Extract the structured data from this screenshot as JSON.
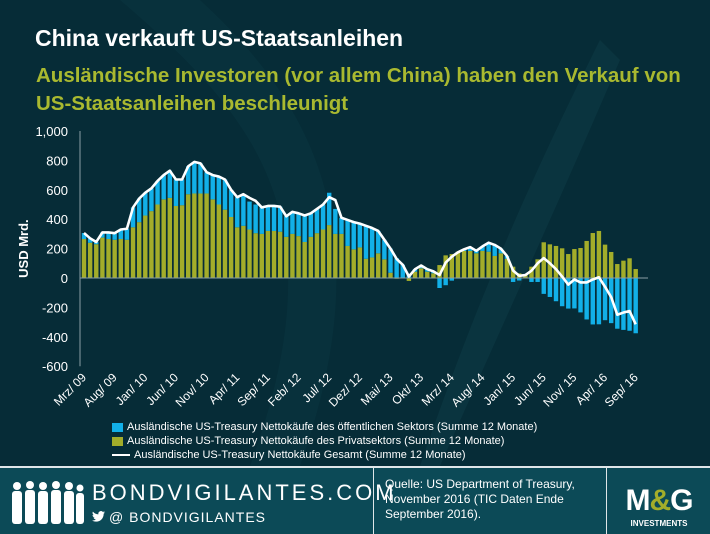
{
  "header": {
    "title": "China verkauft US-Staatsanleihen",
    "subtitle": "Ausländische Investoren (vor allem China) haben den Verkauf von US-Staatsanleihen beschleunigt"
  },
  "chart_data": {
    "type": "bar",
    "stacked": true,
    "ylabel": "USD Mrd.",
    "ylim": [
      -600,
      1000
    ],
    "yticks": [
      1000,
      800,
      600,
      400,
      200,
      0,
      -200,
      -400,
      -600
    ],
    "ytick_labels": [
      "1,000",
      "800",
      "600",
      "400",
      "200",
      "0",
      "-200",
      "-400",
      "-600"
    ],
    "x_start": "Mrz/ 09",
    "x_end": "Sep/ 16",
    "frequency": "monthly",
    "tick_labels": [
      "Mrz/ 09",
      "Aug/ 09",
      "Jan/ 10",
      "Jun/ 10",
      "Nov/ 10",
      "Apr/ 11",
      "Sep/ 11",
      "Feb/ 12",
      "Jul/ 12",
      "Dez/ 12",
      "Mai/ 13",
      "Okt/ 13",
      "Mrz/ 14",
      "Aug/ 14",
      "Jan/ 15",
      "Jun/ 15",
      "Nov/ 15",
      "Apr/ 16",
      "Sep/ 16"
    ],
    "grid": false,
    "legend_placement": "bottom",
    "series": [
      {
        "name": "Ausländische US-Treasury Nettokäufe des öffentlichen Sektors (Summe 12 Monate)",
        "type": "bar",
        "color": "#12b0e8",
        "values": [
          41,
          30,
          15,
          35,
          45,
          45,
          65,
          75,
          135,
          160,
          155,
          155,
          160,
          165,
          185,
          180,
          175,
          190,
          215,
          205,
          145,
          165,
          190,
          205,
          185,
          205,
          215,
          190,
          195,
          180,
          170,
          170,
          170,
          140,
          150,
          155,
          180,
          160,
          165,
          170,
          220,
          170,
          110,
          177,
          185,
          162,
          220,
          200,
          152,
          133,
          164,
          135,
          90,
          30,
          17,
          19,
          17,
          13,
          -68,
          -49,
          -18,
          -4,
          11,
          26,
          17,
          31,
          61,
          75,
          32,
          19,
          -27,
          -17,
          0,
          -27,
          -27,
          -108,
          -129,
          -158,
          -192,
          -208,
          -207,
          -234,
          -282,
          -316,
          -315,
          -287,
          -307,
          -345,
          -353,
          -359,
          -376
        ]
      },
      {
        "name": "Ausländische US-Treasury Nettokäufe des Privatsektors (Summe 12 Monate)",
        "type": "bar",
        "color": "#a3ad2a",
        "values": [
          265,
          240,
          230,
          275,
          265,
          260,
          265,
          260,
          345,
          380,
          425,
          455,
          500,
          535,
          545,
          490,
          495,
          570,
          575,
          575,
          575,
          535,
          500,
          465,
          415,
          345,
          355,
          330,
          305,
          300,
          320,
          320,
          315,
          280,
          300,
          285,
          245,
          280,
          305,
          330,
          360,
          300,
          300,
          218,
          195,
          208,
          131,
          140,
          168,
          127,
          36,
          -5,
          0,
          -20,
          43,
          66,
          43,
          32,
          88,
          154,
          163,
          179,
          184,
          184,
          168,
          184,
          179,
          150,
          168,
          131,
          77,
          32,
          20,
          77,
          127,
          243,
          229,
          218,
          202,
          163,
          197,
          204,
          252,
          306,
          320,
          227,
          177,
          95,
          118,
          134,
          61
        ]
      },
      {
        "name": "Ausländische US-Treasury Nettokäufe Gesamt (Summe 12 Monate)",
        "type": "line",
        "color": "#ffffff",
        "values": [
          306,
          270,
          245,
          310,
          310,
          305,
          330,
          335,
          480,
          540,
          580,
          610,
          660,
          700,
          730,
          670,
          670,
          760,
          790,
          780,
          720,
          700,
          690,
          670,
          600,
          550,
          570,
          545,
          525,
          480,
          490,
          490,
          485,
          420,
          450,
          440,
          425,
          440,
          470,
          500,
          550,
          530,
          410,
          395,
          380,
          370,
          355,
          340,
          320,
          260,
          200,
          130,
          90,
          10,
          60,
          85,
          60,
          45,
          20,
          105,
          145,
          175,
          195,
          210,
          185,
          215,
          240,
          225,
          200,
          150,
          50,
          15,
          20,
          50,
          100,
          135,
          100,
          60,
          10,
          -45,
          -10,
          -30,
          -30,
          -10,
          5,
          -60,
          -130,
          -250,
          -235,
          -225,
          -315
        ]
      }
    ]
  },
  "footer": {
    "brand": "BONDVIGILANTES.COM",
    "handle": "@ BONDVIGILANTES",
    "source": "Quelle: US Department of Treasury, November 2016 (TIC Daten Ende September 2016).",
    "logo_text": "M&G",
    "logo_sub": "INVESTMENTS"
  }
}
